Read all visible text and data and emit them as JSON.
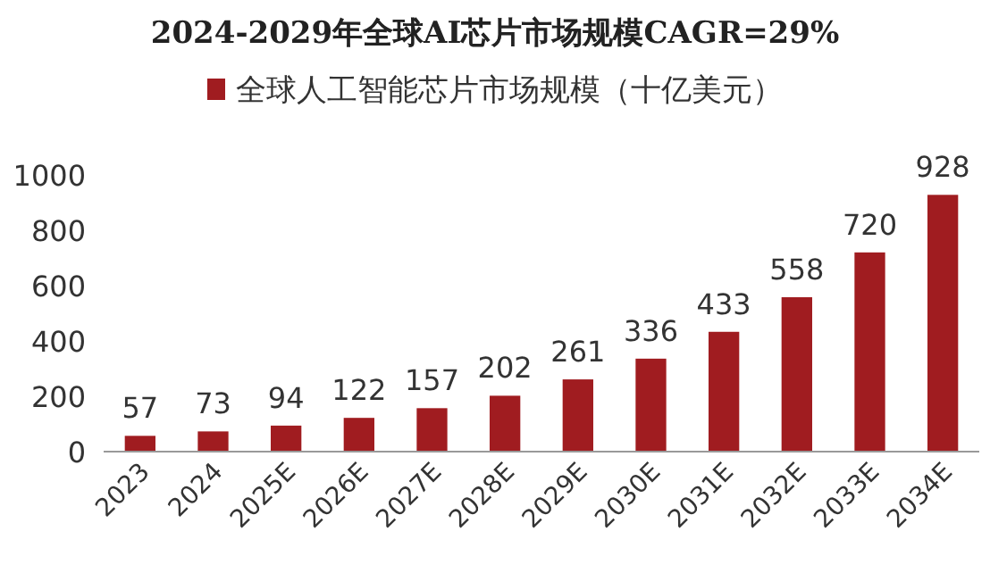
{
  "chart_data": {
    "type": "bar",
    "title": "2024-2029年全球AI芯片市场规模CAGR=29%",
    "categories": [
      "2023",
      "2024",
      "2025E",
      "2026E",
      "2027E",
      "2028E",
      "2029E",
      "2030E",
      "2031E",
      "2032E",
      "2033E",
      "2034E"
    ],
    "series": [
      {
        "name": "全球人工智能芯片市场规模（十亿美元）",
        "color": "#a01c20",
        "values": [
          57,
          73,
          94,
          122,
          157,
          202,
          261,
          336,
          433,
          558,
          720,
          928
        ]
      }
    ],
    "ylim": [
      0,
      1000
    ],
    "yticks": [
      0,
      200,
      400,
      600,
      800,
      1000
    ],
    "data_labels": true,
    "legend": "top"
  }
}
